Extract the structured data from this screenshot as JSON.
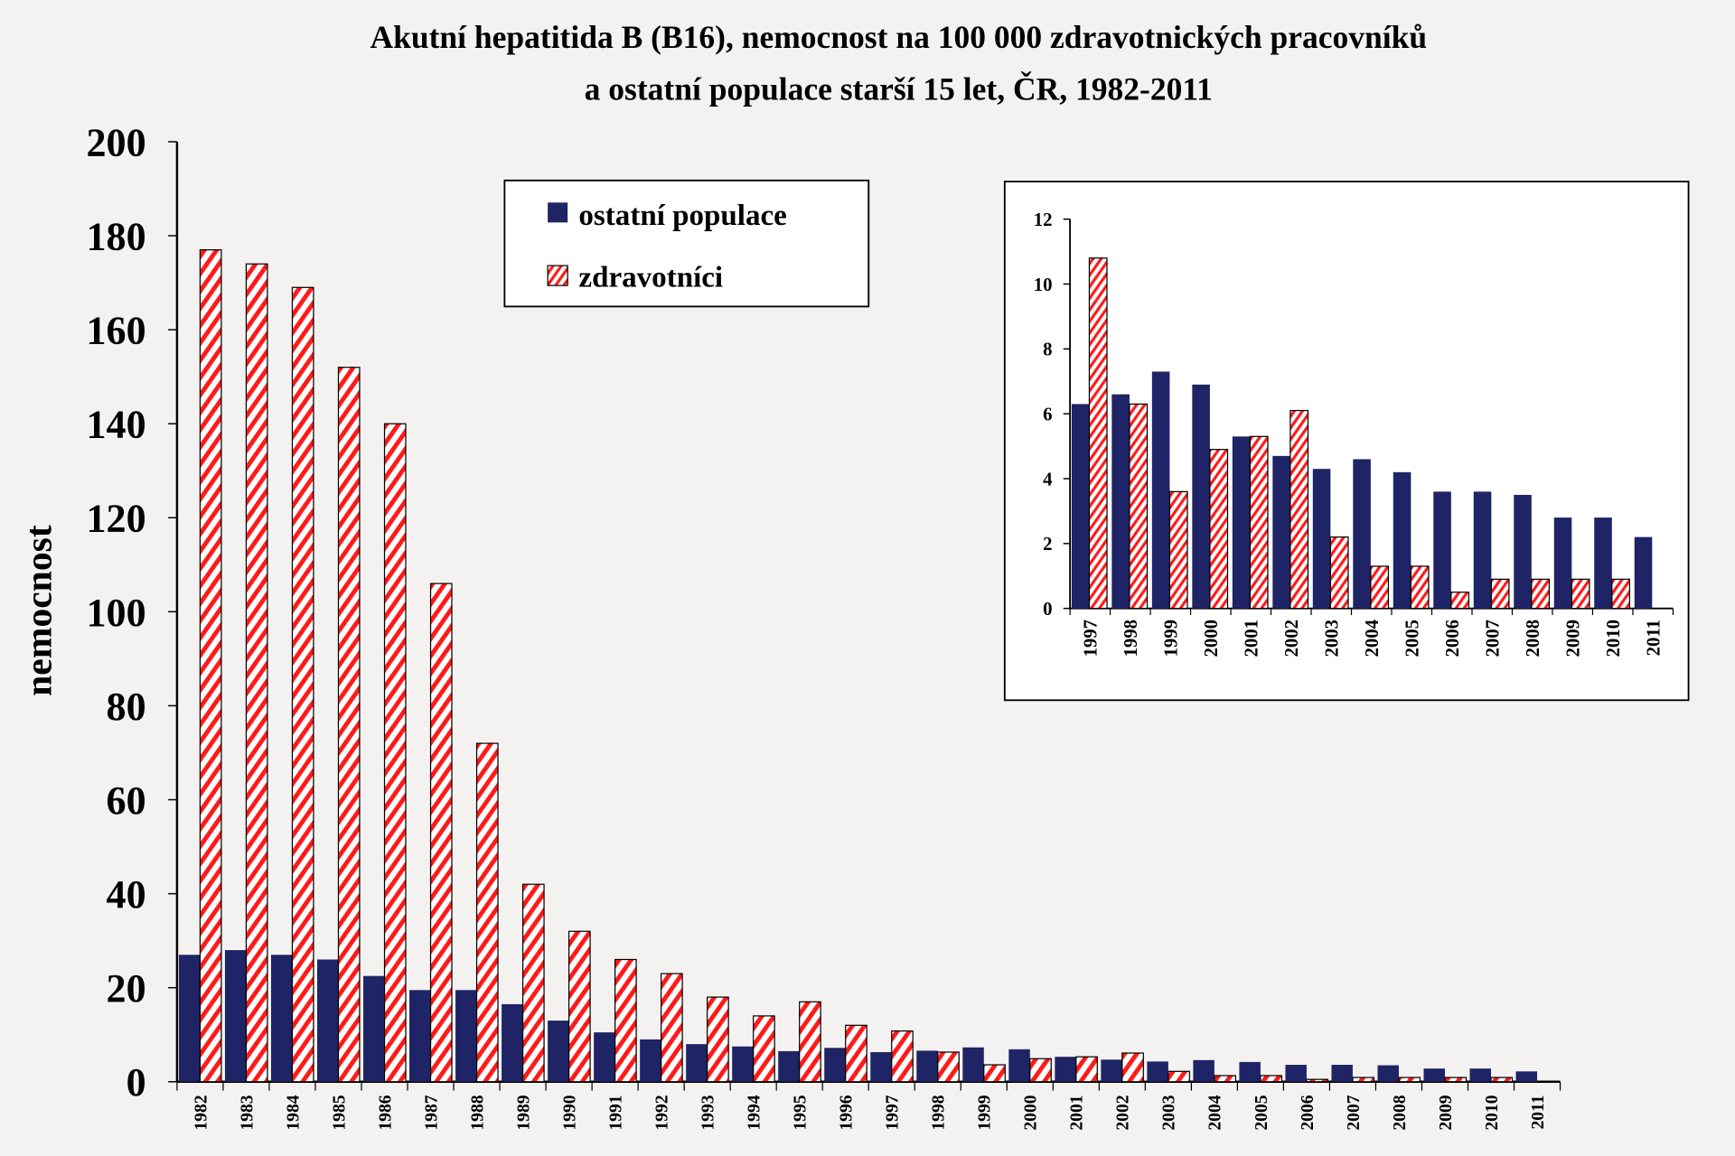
{
  "chart_data": [
    {
      "type": "bar",
      "title": "Akutní hepatitida B (B16), nemocnost na 100 000 zdravotnických pracovníků",
      "subtitle": "a ostatní populace starší 15 let, ČR, 1982-2011",
      "xlabel": "",
      "ylabel": "nemocnost",
      "ylim": [
        0,
        200
      ],
      "yticks": [
        0,
        20,
        40,
        60,
        80,
        100,
        120,
        140,
        160,
        180,
        200
      ],
      "grid": false,
      "legend": "top-center",
      "categories": [
        "1982",
        "1983",
        "1984",
        "1985",
        "1986",
        "1987",
        "1988",
        "1989",
        "1990",
        "1991",
        "1992",
        "1993",
        "1994",
        "1995",
        "1996",
        "1997",
        "1998",
        "1999",
        "2000",
        "2001",
        "2002",
        "2003",
        "2004",
        "2005",
        "2006",
        "2007",
        "2008",
        "2009",
        "2010",
        "2011"
      ],
      "series": [
        {
          "name": "ostatní populace",
          "color": "#1f2466",
          "pattern": "solid",
          "values": [
            27,
            28,
            27,
            26,
            22.5,
            19.5,
            19.5,
            16.5,
            13,
            10.5,
            9,
            8,
            7.5,
            6.5,
            7.2,
            6.3,
            6.6,
            7.3,
            6.9,
            5.3,
            4.7,
            4.3,
            4.6,
            4.2,
            3.6,
            3.6,
            3.5,
            2.8,
            2.8,
            2.2
          ]
        },
        {
          "name": "zdravotníci",
          "color": "#ff1a1a",
          "pattern": "diagonal-stripes",
          "values": [
            177,
            174,
            169,
            152,
            140,
            106,
            72,
            42,
            32,
            26,
            23,
            18,
            14,
            17,
            12,
            10.8,
            6.3,
            3.6,
            4.9,
            5.3,
            6.1,
            2.2,
            1.3,
            1.3,
            0.5,
            0.9,
            0.9,
            0.9,
            0.9,
            0
          ]
        }
      ]
    },
    {
      "type": "bar",
      "title": "",
      "ylim": [
        0,
        12
      ],
      "yticks": [
        0,
        2,
        4,
        6,
        8,
        10,
        12
      ],
      "grid": false,
      "categories": [
        "1997",
        "1998",
        "1999",
        "2000",
        "2001",
        "2002",
        "2003",
        "2004",
        "2005",
        "2006",
        "2007",
        "2008",
        "2009",
        "2010",
        "2011"
      ],
      "series": [
        {
          "color": "#1f2466",
          "values": [
            6.3,
            6.6,
            7.3,
            6.9,
            5.3,
            4.7,
            4.3,
            4.6,
            4.2,
            3.6,
            3.6,
            3.5,
            2.8,
            2.8,
            2.2
          ]
        },
        {
          "color": "#ff1a1a",
          "values": [
            10.8,
            6.3,
            3.6,
            4.9,
            5.3,
            6.1,
            2.2,
            1.3,
            1.3,
            0.5,
            0.9,
            0.9,
            0.9,
            0.9,
            0
          ]
        }
      ]
    }
  ]
}
